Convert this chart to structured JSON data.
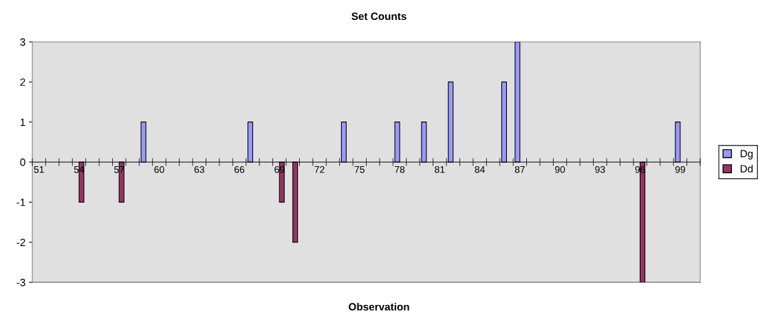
{
  "chart_data": {
    "type": "bar",
    "title": "Set Counts",
    "xlabel": "Observation",
    "categories": [
      "51",
      null,
      null,
      "54",
      null,
      null,
      "57",
      null,
      null,
      "60",
      null,
      null,
      "63",
      null,
      null,
      "66",
      null,
      null,
      "69",
      null,
      null,
      "72",
      null,
      null,
      "75",
      null,
      null,
      "78",
      null,
      null,
      "81",
      null,
      null,
      "84",
      null,
      null,
      "87",
      null,
      null,
      "90",
      null,
      null,
      "93",
      null,
      null,
      "96",
      null,
      null,
      "99",
      null
    ],
    "series": [
      {
        "name": "Dg",
        "color": "#9999ff",
        "values": [
          null,
          null,
          null,
          null,
          null,
          null,
          null,
          null,
          1,
          null,
          null,
          null,
          null,
          null,
          null,
          null,
          1,
          null,
          null,
          null,
          null,
          null,
          null,
          1,
          null,
          null,
          null,
          1,
          null,
          1,
          null,
          2,
          null,
          null,
          null,
          2,
          3,
          null,
          null,
          null,
          null,
          null,
          null,
          null,
          null,
          null,
          null,
          null,
          1,
          null
        ]
      },
      {
        "name": "Dd",
        "color": "#993366",
        "values": [
          null,
          null,
          null,
          -1,
          null,
          null,
          -1,
          null,
          null,
          null,
          null,
          null,
          null,
          null,
          null,
          null,
          null,
          null,
          -1,
          -2,
          null,
          null,
          null,
          null,
          null,
          null,
          null,
          null,
          null,
          null,
          null,
          null,
          null,
          null,
          null,
          null,
          null,
          null,
          null,
          null,
          null,
          null,
          null,
          null,
          null,
          -3,
          null,
          null,
          null,
          null
        ]
      }
    ],
    "ylim": [
      -3,
      3
    ],
    "yticks": [
      {
        "value": -3,
        "label": "-3"
      },
      {
        "value": -2,
        "label": "-2"
      },
      {
        "value": -1,
        "label": "-1"
      },
      0,
      1,
      2,
      3
    ],
    "grid": false,
    "legend": "right"
  }
}
